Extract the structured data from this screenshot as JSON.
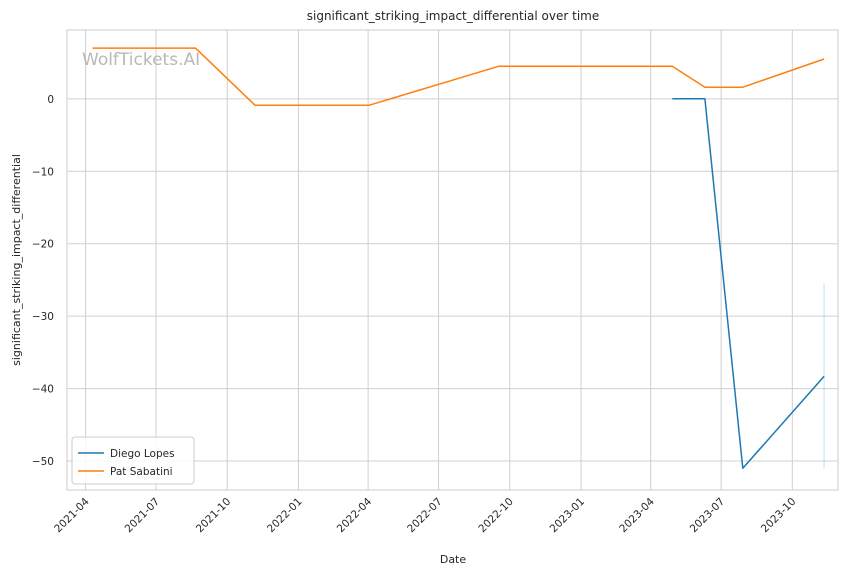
{
  "chart_data": {
    "type": "line",
    "title": "significant_striking_impact_differential over time",
    "xlabel": "Date",
    "ylabel": "significant_striking_impact_differential",
    "watermark": "WolfTickets.AI",
    "x_ticks": [
      "2021-04",
      "2021-07",
      "2021-10",
      "2022-01",
      "2022-04",
      "2022-07",
      "2022-10",
      "2023-01",
      "2023-04",
      "2023-07",
      "2023-10"
    ],
    "y_ticks": [
      0,
      -10,
      -20,
      -30,
      -40,
      -50
    ],
    "xlim": [
      "2021-03-08",
      "2023-11-29"
    ],
    "ylim": [
      -54,
      9.5
    ],
    "grid": true,
    "legend_position": "lower left",
    "series": [
      {
        "name": "Diego Lopes",
        "color": "#1f77b4",
        "x": [
          "2023-04-29",
          "2023-06-10",
          "2023-07-29",
          "2023-11-11"
        ],
        "y": [
          0,
          0,
          -51,
          -38.3
        ]
      },
      {
        "name": "Pat Sabatini",
        "color": "#ff7f0e",
        "x": [
          "2021-04-10",
          "2021-08-21",
          "2021-11-06",
          "2022-04-02",
          "2022-09-17",
          "2023-04-29",
          "2023-06-10",
          "2023-07-29",
          "2023-11-11"
        ],
        "y": [
          7,
          7,
          -0.9,
          -0.9,
          4.5,
          4.5,
          1.6,
          1.6,
          5.5
        ]
      }
    ],
    "band": {
      "color": "#1f77b4",
      "x": "2023-11-11",
      "y_range": [
        -51,
        -25.5
      ]
    }
  }
}
